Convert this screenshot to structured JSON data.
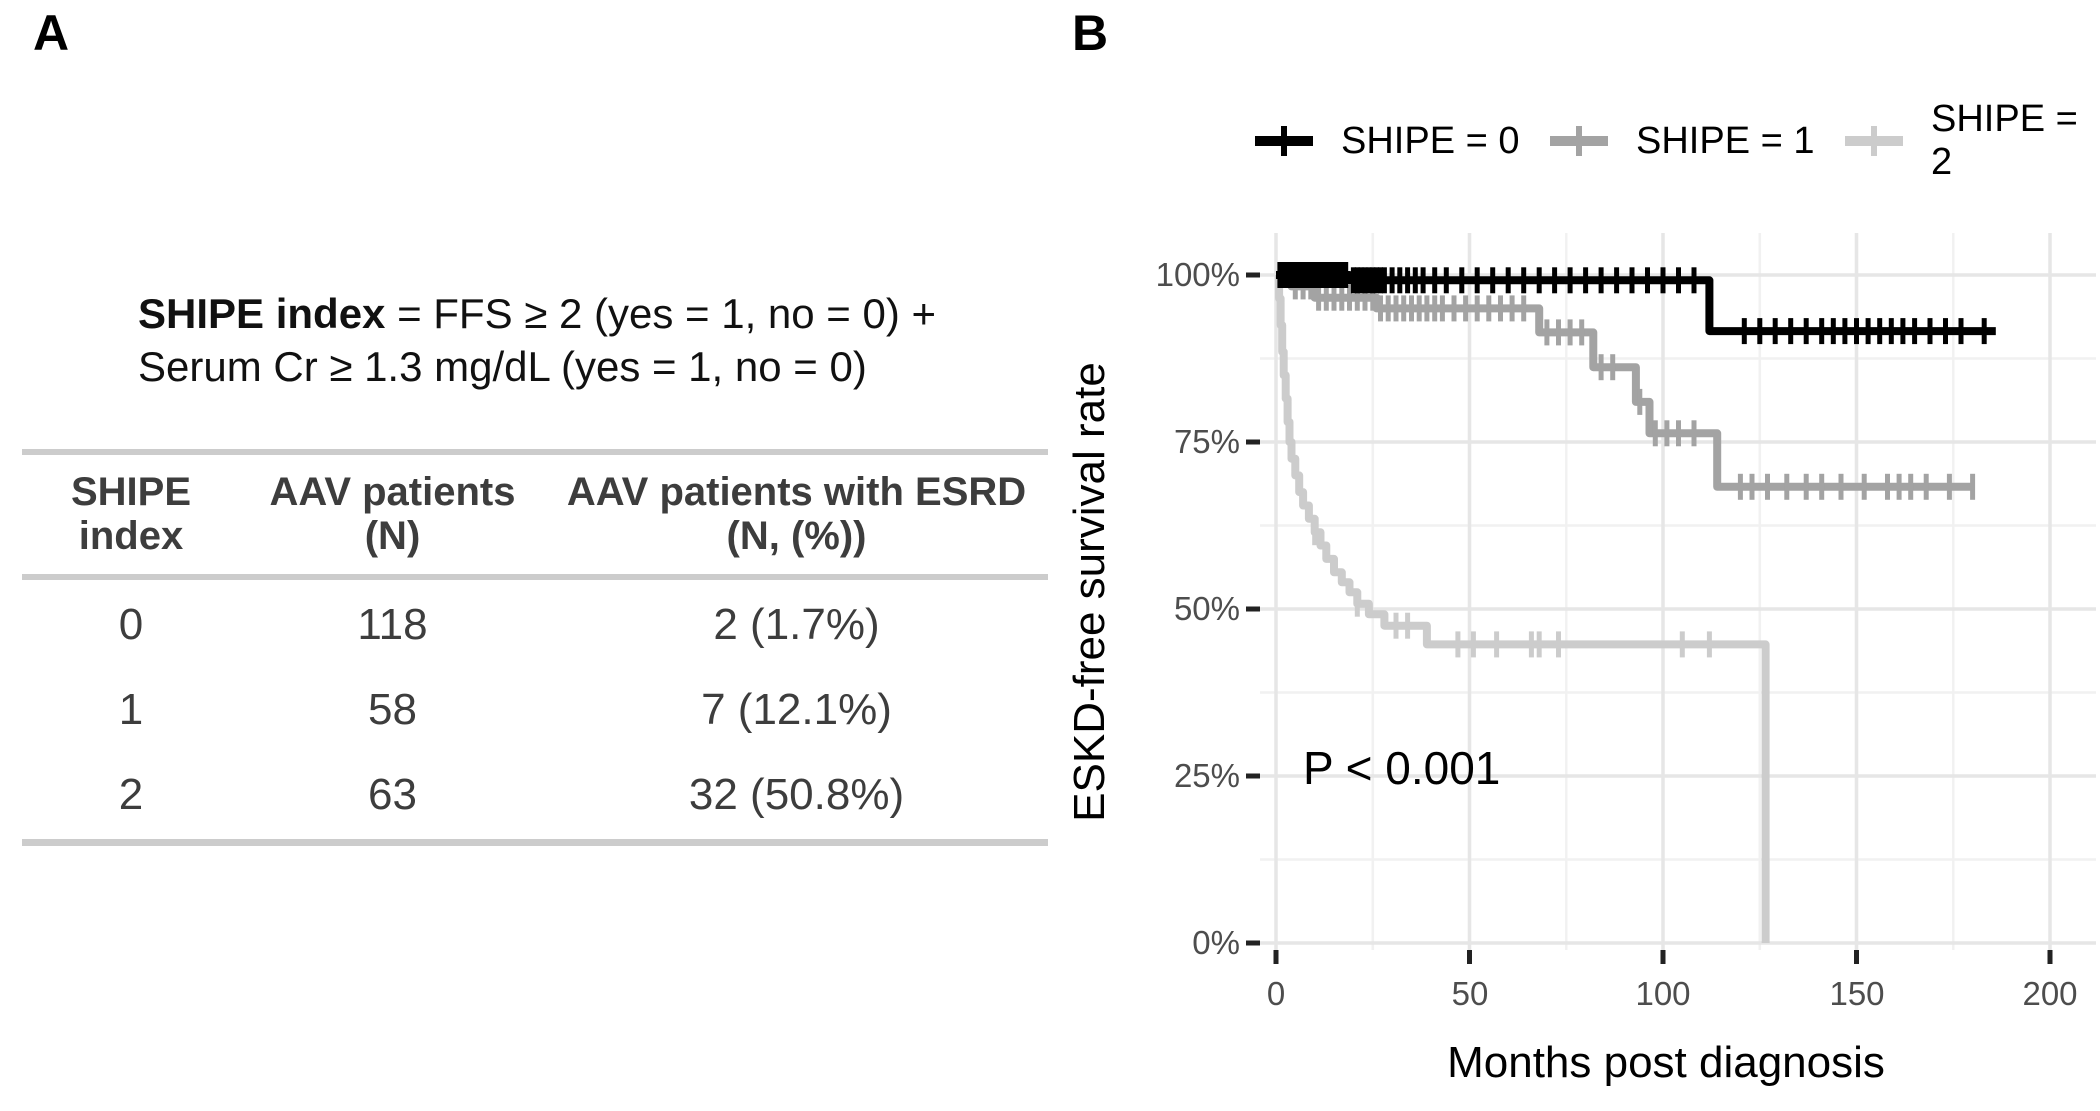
{
  "panel_a": {
    "label": "A",
    "formula": {
      "bold": "SHIPE index",
      "line1_rest": " = FFS ≥ 2 (yes = 1, no = 0) +",
      "line2": "Serum Cr ≥ 1.3 mg/dL (yes = 1, no = 0)"
    },
    "table": {
      "col_headers": [
        {
          "line1": "SHIPE",
          "line2": "index"
        },
        {
          "line1": "AAV patients",
          "line2": "(N)"
        },
        {
          "line1": "AAV patients with ESRD",
          "line2": "(N, (%))"
        }
      ],
      "rows": [
        [
          "0",
          "118",
          "2 (1.7%)"
        ],
        [
          "1",
          "58",
          "7 (12.1%)"
        ],
        [
          "2",
          "63",
          "32 (50.8%)"
        ]
      ]
    }
  },
  "panel_b": {
    "label": "B",
    "p_value": "P < 0.001",
    "legend": {
      "items": [
        {
          "label": "SHIPE = 0",
          "color": "#000000"
        },
        {
          "label": "SHIPE = 1",
          "color": "#a3a3a3"
        },
        {
          "label": "SHIPE = 2",
          "color": "#cccccc"
        }
      ]
    },
    "y_axis": {
      "title": "ESKD-free survival rate",
      "tick_labels": [
        "100%",
        "75%",
        "50%",
        "25%",
        "0%"
      ]
    },
    "x_axis": {
      "title": "Months post diagnosis",
      "tick_labels": [
        "0",
        "50",
        "100",
        "150",
        "200"
      ]
    }
  },
  "chart_data": {
    "type": "line",
    "subtype": "kaplan-meier-step",
    "title": "",
    "xlabel": "Months post diagnosis",
    "ylabel": "ESKD-free survival rate",
    "xlim": [
      0,
      200
    ],
    "ylim": [
      0,
      100
    ],
    "x_major_ticks": [
      0,
      50,
      100,
      150,
      200
    ],
    "x_minor_ticks": [
      25,
      75,
      125,
      175
    ],
    "y_major_ticks": [
      0,
      25,
      50,
      75,
      100
    ],
    "y_minor_ticks": [
      12.5,
      37.5,
      62.5,
      87.5
    ],
    "grid": true,
    "legend_position": "top",
    "annotation": {
      "text": "P < 0.001",
      "x_months": 8,
      "y_percent": 21
    },
    "series": [
      {
        "name": "SHIPE = 0",
        "color": "#000000",
        "steps": [
          [
            0,
            100
          ],
          [
            19,
            99.2
          ],
          [
            112,
            91.6
          ]
        ],
        "end_month": 186,
        "censor_months": [
          1,
          2,
          3,
          4,
          5,
          6,
          7,
          8,
          9,
          10,
          11,
          12,
          13,
          14,
          15,
          16,
          17,
          18,
          20,
          21,
          22,
          23,
          24,
          25,
          26,
          27,
          28,
          30,
          32,
          34,
          36,
          38,
          41,
          44,
          48,
          52,
          56,
          60,
          64,
          68,
          72,
          76,
          80,
          84,
          88,
          92,
          96,
          100,
          104,
          108,
          121,
          125,
          129,
          133,
          137,
          141,
          144,
          147,
          150,
          153,
          156,
          159,
          162,
          165,
          169,
          173,
          177,
          183
        ]
      },
      {
        "name": "SHIPE = 1",
        "color": "#a3a3a3",
        "steps": [
          [
            0,
            100
          ],
          [
            4,
            98.3
          ],
          [
            10,
            96.6
          ],
          [
            26,
            95.0
          ],
          [
            68,
            91.4
          ],
          [
            82,
            86.2
          ],
          [
            93,
            81.0
          ],
          [
            96.5,
            76.3
          ],
          [
            114,
            68.3
          ]
        ],
        "end_month": 180,
        "censor_months": [
          3,
          5,
          7,
          9,
          11,
          13,
          15,
          17,
          19,
          21,
          23,
          25,
          27,
          29,
          31,
          33,
          35,
          37,
          39,
          41,
          43,
          46,
          49,
          52,
          55,
          58,
          61,
          64,
          70,
          73,
          76,
          79,
          84,
          87,
          94,
          98,
          101,
          104,
          108,
          120,
          123,
          127,
          132,
          137,
          141,
          146,
          152,
          158,
          161,
          164,
          168,
          174,
          180
        ]
      },
      {
        "name": "SHIPE = 2",
        "color": "#cccccc",
        "steps": [
          [
            0,
            100
          ],
          [
            0.8,
            96.5
          ],
          [
            1.2,
            92.5
          ],
          [
            1.6,
            88.5
          ],
          [
            2,
            85
          ],
          [
            2.5,
            81.5
          ],
          [
            3,
            78
          ],
          [
            3.5,
            75
          ],
          [
            4,
            72.5
          ],
          [
            5,
            70
          ],
          [
            6,
            67.5
          ],
          [
            7,
            65.5
          ],
          [
            8.5,
            63.5
          ],
          [
            10,
            61.5
          ],
          [
            11.5,
            59.5
          ],
          [
            13,
            57.5
          ],
          [
            15,
            55.5
          ],
          [
            17,
            54
          ],
          [
            19,
            52.5
          ],
          [
            21,
            50.8
          ],
          [
            24,
            49.2
          ],
          [
            28,
            47.5
          ],
          [
            39,
            44.7
          ],
          [
            126.5,
            0
          ]
        ],
        "end_month": 126.5,
        "censor_months": [
          10,
          21,
          31,
          34,
          47,
          51,
          57,
          66,
          68,
          73,
          105,
          112
        ]
      }
    ]
  }
}
